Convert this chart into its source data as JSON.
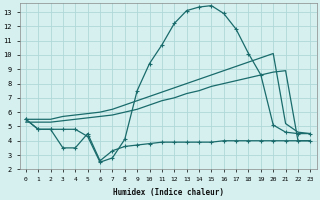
{
  "title": "",
  "xlabel": "Humidex (Indice chaleur)",
  "ylabel": "",
  "bg_color": "#d6f0f0",
  "grid_color": "#b0d8d8",
  "line_color": "#1a6b6b",
  "xlim": [
    -0.5,
    23.5
  ],
  "ylim": [
    2,
    13.6
  ],
  "yticks": [
    2,
    3,
    4,
    5,
    6,
    7,
    8,
    9,
    10,
    11,
    12,
    13
  ],
  "xticks": [
    0,
    1,
    2,
    3,
    4,
    5,
    6,
    7,
    8,
    9,
    10,
    11,
    12,
    13,
    14,
    15,
    16,
    17,
    18,
    19,
    20,
    21,
    22,
    23
  ],
  "curve1_x": [
    0,
    1,
    2,
    3,
    4,
    5,
    6,
    7,
    8,
    9,
    10,
    11,
    12,
    13,
    14,
    15,
    16,
    17,
    18,
    19,
    20,
    21,
    22,
    23
  ],
  "curve1_y": [
    5.5,
    4.8,
    4.8,
    4.8,
    4.8,
    4.3,
    2.5,
    2.8,
    4.1,
    7.5,
    9.4,
    10.7,
    12.2,
    13.1,
    13.35,
    13.45,
    12.9,
    11.8,
    10.1,
    8.6,
    5.1,
    4.6,
    4.5,
    4.5
  ],
  "curve2_x": [
    0,
    1,
    2,
    3,
    4,
    5,
    6,
    7,
    8,
    9,
    10,
    11,
    12,
    13,
    14,
    15,
    16,
    17,
    18,
    19,
    20,
    21,
    22,
    23
  ],
  "curve2_y": [
    5.5,
    5.5,
    5.5,
    5.7,
    5.8,
    5.9,
    6.0,
    6.2,
    6.5,
    6.8,
    7.1,
    7.4,
    7.7,
    8.0,
    8.3,
    8.6,
    8.9,
    9.2,
    9.5,
    9.8,
    10.1,
    5.2,
    4.6,
    4.5
  ],
  "curve3_x": [
    0,
    1,
    2,
    3,
    4,
    5,
    6,
    7,
    8,
    9,
    10,
    11,
    12,
    13,
    14,
    15,
    16,
    17,
    18,
    19,
    20,
    21,
    22,
    23
  ],
  "curve3_y": [
    5.3,
    5.3,
    5.3,
    5.4,
    5.5,
    5.6,
    5.7,
    5.8,
    6.0,
    6.2,
    6.5,
    6.8,
    7.0,
    7.3,
    7.5,
    7.8,
    8.0,
    8.2,
    8.4,
    8.6,
    8.8,
    8.9,
    4.0,
    4.0
  ],
  "curve4_x": [
    0,
    1,
    2,
    3,
    4,
    5,
    6,
    7,
    8,
    9,
    10,
    11,
    12,
    13,
    14,
    15,
    16,
    17,
    18,
    19,
    20,
    21,
    22,
    23
  ],
  "curve4_y": [
    5.5,
    4.8,
    4.8,
    3.5,
    3.5,
    4.5,
    2.6,
    3.3,
    3.6,
    3.7,
    3.8,
    3.9,
    3.9,
    3.9,
    3.9,
    3.9,
    4.0,
    4.0,
    4.0,
    4.0,
    4.0,
    4.0,
    4.0,
    4.0
  ]
}
